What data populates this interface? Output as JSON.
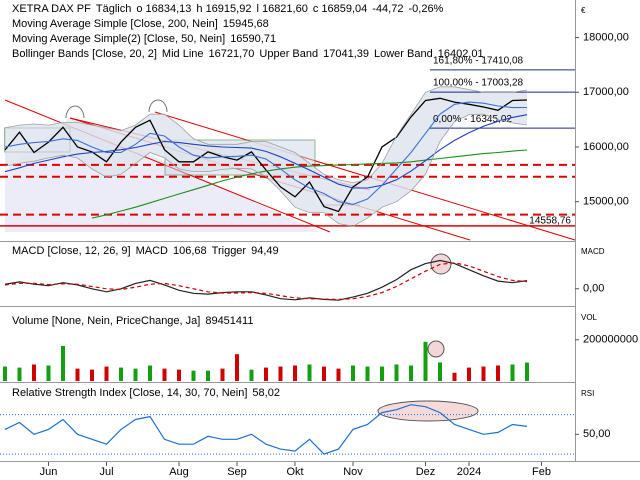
{
  "header": {
    "symbol": "XETRA DAX PF",
    "interval": "Täglich",
    "open": "o 16834,13",
    "high": "h 16915,92",
    "low": "l 16821,60",
    "close": "c 16859,04",
    "change": "-44,72",
    "change_pct": "-0,26%"
  },
  "chart_data": [
    {
      "type": "line",
      "axis_label": "€",
      "categories": [
        null,
        null,
        null,
        "Jun",
        null,
        null,
        null,
        "Jul",
        null,
        null,
        null,
        null,
        "Aug",
        null,
        null,
        null,
        "Sep",
        null,
        null,
        null,
        "Okt",
        null,
        null,
        null,
        "Nov",
        null,
        null,
        null,
        null,
        "Dez",
        null,
        null,
        "2024",
        null,
        null,
        null,
        null,
        "Feb"
      ],
      "series": [
        {
          "color": "#000000",
          "values": [
            15945,
            16270,
            15900,
            16090,
            16360,
            16000,
            15910,
            15730,
            16090,
            16360,
            16490,
            15950,
            15730,
            15730,
            15910,
            15820,
            15760,
            15910,
            15580,
            15270,
            15090,
            15360,
            14910,
            14820,
            15270,
            15450,
            16000,
            16180,
            16550,
            16850,
            16890,
            16820,
            16780,
            16730,
            16670,
            16850,
            16859.04,
            null
          ]
        },
        {
          "name": "Moving Average Simple [Close, 200, Nein]",
          "last_label": "15945,68",
          "color": "#1a8f1a",
          "values": [
            null,
            null,
            null,
            null,
            null,
            null,
            14700,
            14760,
            14830,
            14900,
            14980,
            15060,
            15140,
            15220,
            15300,
            15380,
            15450,
            15510,
            15560,
            15600,
            15630,
            15650,
            15660,
            15670,
            15680,
            15690,
            15700,
            15710,
            15730,
            15760,
            15790,
            15820,
            15850,
            15880,
            15900,
            15925,
            15945.68,
            null
          ]
        },
        {
          "name": "Moving Average Simple(2) [Close, 50, Nein]",
          "last_label": "16590,71",
          "color": "#1f3fbf",
          "values": [
            15550,
            15620,
            15700,
            15760,
            15820,
            15870,
            15900,
            15920,
            15950,
            15990,
            16050,
            16100,
            16080,
            16050,
            16020,
            16000,
            15990,
            15980,
            15920,
            15820,
            15700,
            15580,
            15450,
            15320,
            15250,
            15250,
            15300,
            15400,
            15560,
            15750,
            15950,
            16120,
            16260,
            16380,
            16470,
            16540,
            16590.71,
            null
          ]
        },
        {
          "name": "Mid Line",
          "last_label": "16721,70",
          "color": "#3b6fd6",
          "values": [
            16000,
            16050,
            16080,
            16100,
            16150,
            16120,
            16000,
            15900,
            15900,
            16050,
            16250,
            16200,
            16000,
            15850,
            15800,
            15820,
            15830,
            15850,
            15780,
            15600,
            15400,
            15250,
            15150,
            15000,
            14950,
            15050,
            15300,
            15600,
            15900,
            16250,
            16600,
            16780,
            16820,
            16800,
            16750,
            16720,
            16721.7,
            null
          ]
        },
        {
          "name": "Upper Band",
          "last_label": "17041,39",
          "color": "#a0a0a0",
          "values": [
            16350,
            16400,
            16420,
            16400,
            16450,
            16450,
            16400,
            16350,
            16300,
            16400,
            16600,
            16600,
            16400,
            16150,
            16050,
            16050,
            16050,
            16100,
            16100,
            16000,
            15900,
            15700,
            15500,
            15400,
            15350,
            15400,
            15700,
            16200,
            16600,
            17000,
            17100,
            17100,
            17050,
            17000,
            17000,
            17000,
            17041.39,
            null
          ]
        },
        {
          "name": "Lower Band",
          "last_label": "16402,01",
          "color": "#a0a0a0",
          "values": [
            15650,
            15700,
            15740,
            15800,
            15850,
            15800,
            15600,
            15450,
            15500,
            15700,
            15900,
            15800,
            15600,
            15550,
            15550,
            15590,
            15610,
            15600,
            15460,
            15200,
            14900,
            14800,
            14800,
            14600,
            14550,
            14700,
            14900,
            15000,
            15200,
            15500,
            16100,
            16460,
            16590,
            16600,
            16500,
            16440,
            16402.01,
            null
          ]
        }
      ],
      "bollinger_label": "Bollinger Bands [Close, 20, 2]",
      "band_fill": "#dde3ee",
      "ylim": [
        14300,
        18650
      ],
      "yticks": [
        {
          "value": 15000,
          "label": "15000,00"
        },
        {
          "value": 16000,
          "label": "16000,00"
        },
        {
          "value": 17000,
          "label": "17000,00"
        },
        {
          "value": 18000,
          "label": "18000,00"
        }
      ],
      "fib_levels": [
        {
          "value": 17410.08,
          "label": "161,80% - 17410,08"
        },
        {
          "value": 17003.28,
          "label": "100,00% - 17003,28"
        },
        {
          "value": 16345.02,
          "label": "0,00% - 16345,02"
        }
      ],
      "fib_color": "#1a2a80",
      "dashed_levels": [
        15673,
        15455,
        14764
      ],
      "support": {
        "value": 14558.76,
        "label": "14558,76"
      },
      "level_color": "#e00000"
    },
    {
      "type": "line",
      "label": "MACD [Close, 12, 26, 9]",
      "axis_label": "MACD",
      "series": [
        {
          "name": "MACD",
          "last_label": "106,68",
          "color": "#222222",
          "values": [
            60,
            90,
            60,
            40,
            80,
            50,
            0,
            -40,
            0,
            70,
            110,
            50,
            -20,
            -60,
            -70,
            -50,
            -40,
            -40,
            -80,
            -130,
            -145,
            -120,
            -140,
            -150,
            -110,
            -60,
            20,
            120,
            250,
            330,
            370,
            330,
            250,
            170,
            100,
            80,
            106.68,
            null
          ]
        },
        {
          "name": "Trigger",
          "last_label": "94,49",
          "color": "#d00000",
          "dashed": true,
          "values": [
            50,
            70,
            70,
            55,
            65,
            60,
            30,
            0,
            -10,
            20,
            60,
            70,
            40,
            0,
            -40,
            -55,
            -55,
            -50,
            -60,
            -90,
            -120,
            -130,
            -135,
            -140,
            -130,
            -100,
            -50,
            30,
            130,
            230,
            320,
            340,
            300,
            230,
            160,
            110,
            94.49,
            null
          ]
        }
      ],
      "ylim": [
        -213,
        600
      ],
      "yticks": [
        {
          "value": 0,
          "label": "0,00"
        }
      ]
    },
    {
      "type": "bar",
      "label": "Volume [None, Nein, PriceChange, Ja]",
      "last_label": "89451411",
      "axis_label": "VOL",
      "up_color": "#10a010",
      "down_color": "#d00000",
      "values": [
        70000000,
        65000000,
        80000000,
        75000000,
        170000000,
        60000000,
        55000000,
        70000000,
        65000000,
        60000000,
        75000000,
        60000000,
        55000000,
        50000000,
        50000000,
        60000000,
        130000000,
        55000000,
        65000000,
        70000000,
        75000000,
        80000000,
        70000000,
        60000000,
        75000000,
        70000000,
        70000000,
        80000000,
        75000000,
        190000000,
        90000000,
        40000000,
        65000000,
        70000000,
        75000000,
        80000000,
        89451411,
        null
      ],
      "ylim": [
        0,
        349000000
      ],
      "yticks": [
        200000000
      ]
    },
    {
      "type": "line",
      "label": "Relative Strength Index [Close, 14, 30, 70, Nein]",
      "axis_label": "RSI",
      "series": [
        {
          "last_label": "58,02",
          "color": "#1e6fd0",
          "values": [
            55,
            62,
            50,
            55,
            65,
            50,
            45,
            40,
            55,
            65,
            68,
            45,
            40,
            40,
            48,
            45,
            45,
            50,
            40,
            35,
            33,
            45,
            30,
            35,
            55,
            60,
            72,
            75,
            80,
            78,
            72,
            60,
            55,
            50,
            52,
            60,
            58.02,
            null
          ]
        }
      ],
      "levels": [
        30,
        70
      ],
      "ylim": [
        24,
        100
      ],
      "yticks": [
        {
          "value": 50,
          "label": "50,00"
        }
      ]
    }
  ]
}
